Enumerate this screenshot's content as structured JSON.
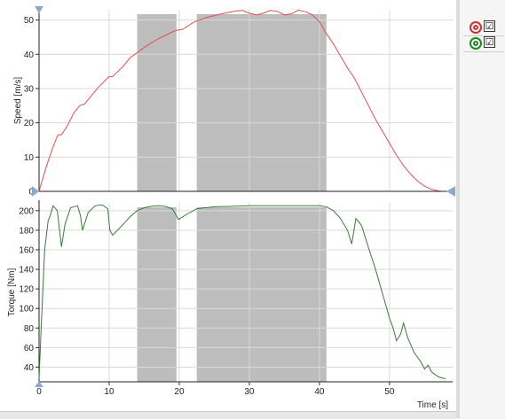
{
  "legend": {
    "items": [
      {
        "marker_color": "#cc3333",
        "checked": "☑"
      },
      {
        "marker_color": "#228822",
        "checked": "☑"
      }
    ]
  },
  "colors": {
    "speed_line": "#e05050",
    "torque_line": "#3a7a3a",
    "shade": "#bdbdbd",
    "grid": "#d9d9d9",
    "handle": "#8fa8c8"
  },
  "icons": [
    "marker-circle-icon",
    "checkbox-icon",
    "axis-handle-icon"
  ],
  "chart_data": [
    {
      "type": "line",
      "ylabel": "Speed [m/s]",
      "xlim": [
        0,
        59
      ],
      "ylim": [
        0,
        53
      ],
      "yticks": [
        0,
        10,
        20,
        30,
        40,
        50
      ],
      "grid": true,
      "shaded_regions": [
        [
          14,
          19.6
        ],
        [
          22.5,
          41
        ]
      ],
      "series": [
        {
          "x": [
            0,
            1,
            2,
            2.7,
            3.2,
            4,
            5,
            5.8,
            6.5,
            7.5,
            8.5,
            9.5,
            10,
            10.5,
            11,
            12,
            13,
            14,
            15,
            16,
            17,
            18,
            19,
            19.6,
            20.5,
            22,
            24,
            26,
            28,
            29,
            30,
            31,
            32,
            33,
            34,
            35,
            36,
            37,
            38,
            39,
            40,
            41,
            42,
            43,
            44,
            45,
            46,
            47,
            48,
            49,
            50,
            51,
            52,
            53,
            54,
            55,
            56,
            57,
            57.5,
            58
          ],
          "y": [
            0,
            7,
            13,
            16.5,
            16.5,
            19,
            23,
            25,
            25.5,
            28,
            30.5,
            32.5,
            33.5,
            33.5,
            34.5,
            36.5,
            39,
            40.5,
            42,
            43.3,
            44.5,
            45.5,
            46.5,
            47,
            47.3,
            49.3,
            50.8,
            51.8,
            52.6,
            52.8,
            52,
            51.5,
            52,
            52.8,
            52.5,
            51.5,
            51.8,
            52.9,
            52.4,
            51.5,
            49.5,
            46,
            43,
            39.5,
            36,
            33,
            29,
            25,
            21,
            17.5,
            14,
            10.5,
            7.5,
            5,
            3,
            1.5,
            0.6,
            0.1,
            0,
            0
          ]
        }
      ]
    },
    {
      "type": "line",
      "xlabel": "Time [s]",
      "ylabel": "Torque [Nm]",
      "xlim": [
        0,
        59
      ],
      "xticks": [
        0,
        10,
        20,
        30,
        40,
        50
      ],
      "ylim": [
        25,
        208
      ],
      "yticks": [
        40,
        60,
        80,
        100,
        120,
        140,
        160,
        180,
        200
      ],
      "grid": true,
      "shaded_regions": [
        [
          14,
          19.6
        ],
        [
          22.5,
          41
        ]
      ],
      "series": [
        {
          "x": [
            0,
            0.3,
            0.8,
            1.3,
            1.6,
            2,
            2.6,
            3.2,
            3.7,
            4.5,
            5.5,
            5.9,
            6.2,
            7,
            8,
            9,
            9.8,
            10.1,
            10.5,
            12,
            13,
            14,
            15,
            16,
            17,
            18,
            19,
            19.5,
            19.9,
            21,
            22.5,
            25,
            30,
            35,
            40,
            41,
            42,
            43,
            44,
            44.6,
            45.2,
            46,
            47,
            48,
            49,
            50,
            50.5,
            51,
            51.6,
            52,
            52.6,
            53.5,
            54.5,
            55,
            55.5,
            56,
            57,
            58
          ],
          "y": [
            28,
            80,
            160,
            190,
            195,
            205,
            200,
            163,
            186,
            203,
            205,
            195,
            180,
            198,
            205,
            206,
            202,
            180,
            175,
            186,
            194,
            200,
            203,
            204.5,
            205,
            204.5,
            202,
            196,
            191,
            196,
            202,
            204,
            205,
            205,
            205,
            204,
            200,
            192,
            180,
            166,
            192,
            185,
            162,
            140,
            115,
            90,
            80,
            67,
            74,
            85,
            70,
            55,
            45,
            38,
            42,
            35,
            30,
            28
          ]
        }
      ]
    }
  ]
}
